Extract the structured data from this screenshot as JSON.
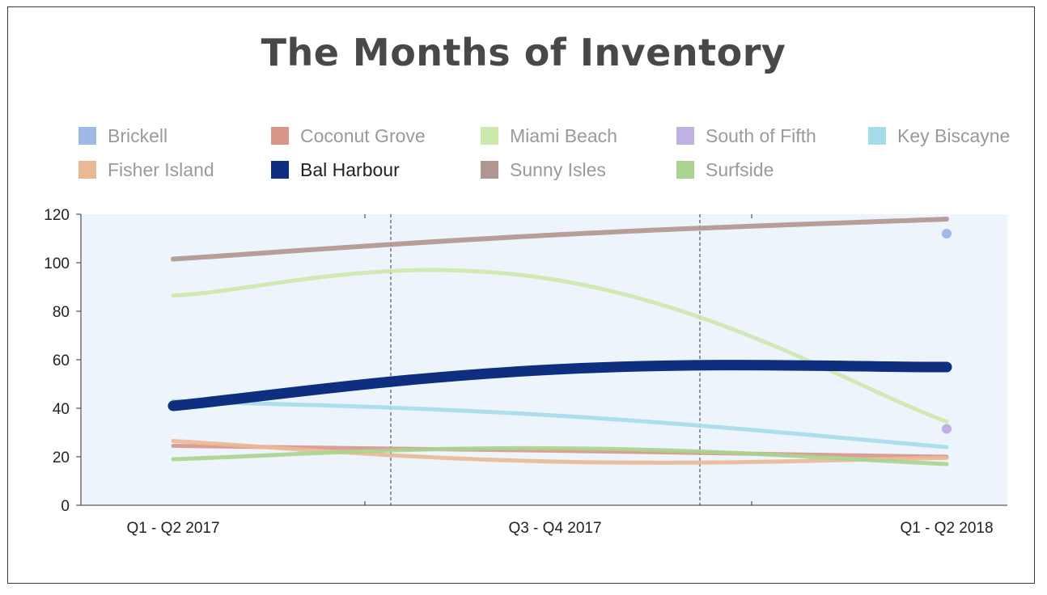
{
  "chart_data": {
    "type": "line",
    "title": "The Months of Inventory",
    "categories": [
      "Q1 - Q2 2017",
      "Q3 - Q4 2017",
      "Q1 - Q2 2018"
    ],
    "ylim": [
      0,
      120
    ],
    "yticks": [
      0,
      20,
      40,
      60,
      80,
      100,
      120
    ],
    "grid": false,
    "legend_position": "top",
    "series": [
      {
        "name": "Brickell",
        "color": "#9fb8e6",
        "values": [
          null,
          null,
          112
        ],
        "width": 0
      },
      {
        "name": "Coconut Grove",
        "color": "#d8958a",
        "values": [
          24.5,
          22.5,
          20
        ],
        "width": 5
      },
      {
        "name": "Miami Beach",
        "color": "#cde8ad",
        "values": [
          86.5,
          93,
          34.5
        ],
        "width": 5
      },
      {
        "name": "South of Fifth",
        "color": "#bfb1e3",
        "values": [
          null,
          null,
          31.5
        ],
        "width": 0
      },
      {
        "name": "Key Biscayne",
        "color": "#a5dcea",
        "values": [
          43,
          37,
          24
        ],
        "width": 5
      },
      {
        "name": "Fisher Island",
        "color": "#ebb896",
        "values": [
          26.5,
          18,
          19.5
        ],
        "width": 5
      },
      {
        "name": "Bal Harbour",
        "color": "#0e2f7f",
        "values": [
          41,
          56,
          57
        ],
        "width": 13
      },
      {
        "name": "Sunny Isles",
        "color": "#b09590",
        "values": [
          101.5,
          111.5,
          118
        ],
        "width": 6
      },
      {
        "name": "Surfside",
        "color": "#a9d38e",
        "values": [
          19,
          23.5,
          17
        ],
        "width": 5
      }
    ]
  }
}
